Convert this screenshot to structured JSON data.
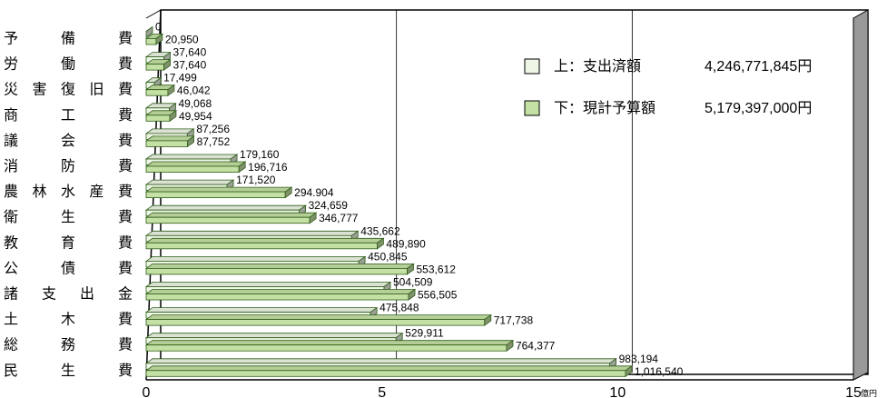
{
  "chart_data": {
    "type": "bar",
    "orientation": "horizontal",
    "style": "3d",
    "categories": [
      "予 備 費",
      "労 働 費",
      "災害復旧費",
      "商 工 費",
      "議 会 費",
      "消 防 費",
      "農林水産費",
      "衛 生 費",
      "教 育 費",
      "公 債 費",
      "諸 支 出 金",
      "土 木 費",
      "総 務 費",
      "民 生 費"
    ],
    "series": [
      {
        "name": "上：支出済額",
        "color": "#eef6e6",
        "values": [
          0,
          37640,
          17499,
          49068,
          87256,
          179160,
          171520,
          324659,
          435662,
          450845,
          504509,
          475848,
          529911,
          983194
        ],
        "labels": [
          "0",
          "37,640",
          "17,499",
          "49,068",
          "87,256",
          "179,160",
          "171,520",
          "324,659",
          "435,662",
          "450,845",
          "504,509",
          "475,848",
          "529,911",
          "983,194"
        ]
      },
      {
        "name": "下：現計予算額",
        "color": "#c5e0a5",
        "values": [
          20950,
          37640,
          46042,
          49954,
          87752,
          196716,
          294904,
          346777,
          489890,
          553612,
          556505,
          717738,
          764377,
          1016540
        ],
        "labels": [
          "20,950",
          "37,640",
          "46,042",
          "49,954",
          "87,752",
          "196,716",
          "294.904",
          "346,777",
          "489,890",
          "553,612",
          "556,505",
          "717,738",
          "764,377",
          "1,016,540"
        ]
      }
    ],
    "xlim": [
      0,
      15
    ],
    "xticks": [
      "0",
      "5",
      "10",
      "15"
    ],
    "unit": "億円",
    "grid": true,
    "legend": {
      "position": "top-right",
      "entries": [
        {
          "label": "上：支出済額",
          "amount": "4,246,771,845円"
        },
        {
          "label": "下：現計予算額",
          "amount": "5,179,397,000円"
        }
      ]
    }
  }
}
